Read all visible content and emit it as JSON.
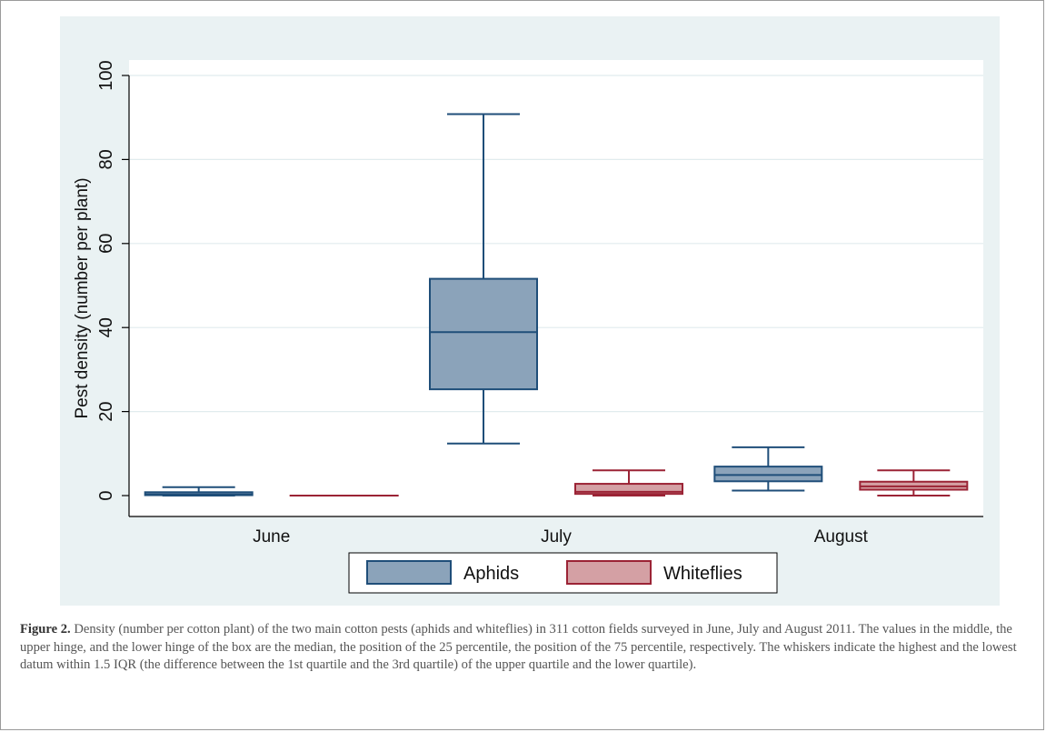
{
  "chart_data": {
    "type": "box",
    "ylabel": "Pest density (number per plant)",
    "ylim": [
      0,
      100
    ],
    "yticks": [
      0,
      20,
      40,
      60,
      80,
      100
    ],
    "categories": [
      "June",
      "July",
      "August"
    ],
    "grid": true,
    "legend_position": "bottom",
    "series": [
      {
        "name": "Aphids",
        "fill": "#8ba3ba",
        "stroke": "#1f4e79",
        "boxes": [
          {
            "category": "June",
            "whisker_low": 0,
            "q1": 0.1,
            "median": 0.3,
            "q3": 0.8,
            "whisker_high": 2.0
          },
          {
            "category": "July",
            "whisker_low": 12.4,
            "q1": 25.3,
            "median": 38.9,
            "q3": 51.6,
            "whisker_high": 90.8
          },
          {
            "category": "August",
            "whisker_low": 1.2,
            "q1": 3.4,
            "median": 4.9,
            "q3": 6.9,
            "whisker_high": 11.5
          }
        ]
      },
      {
        "name": "Whiteflies",
        "fill": "#d4a0a4",
        "stroke": "#9b2335",
        "boxes": [
          {
            "category": "June",
            "whisker_low": 0,
            "q1": 0,
            "median": 0,
            "q3": 0,
            "whisker_high": 0
          },
          {
            "category": "July",
            "whisker_low": 0,
            "q1": 0.4,
            "median": 0.9,
            "q3": 2.8,
            "whisker_high": 6.0
          },
          {
            "category": "August",
            "whisker_low": 0,
            "q1": 1.4,
            "median": 2.2,
            "q3": 3.3,
            "whisker_high": 6.0
          }
        ]
      }
    ]
  },
  "caption": {
    "label": "Figure 2.",
    "text": "Density (number per cotton plant) of the two main cotton pests (aphids and whiteflies) in 311 cotton fields surveyed in June, July and August 2011. The values in the middle, the upper hinge, and the lower hinge of the box are the median, the position of the 25 percentile, the position of the 75 percentile, respectively. The whiskers indicate the highest and the lowest datum within 1.5 IQR (the difference between the 1st quartile and the 3rd quartile) of the upper quartile and the lower quartile)."
  }
}
